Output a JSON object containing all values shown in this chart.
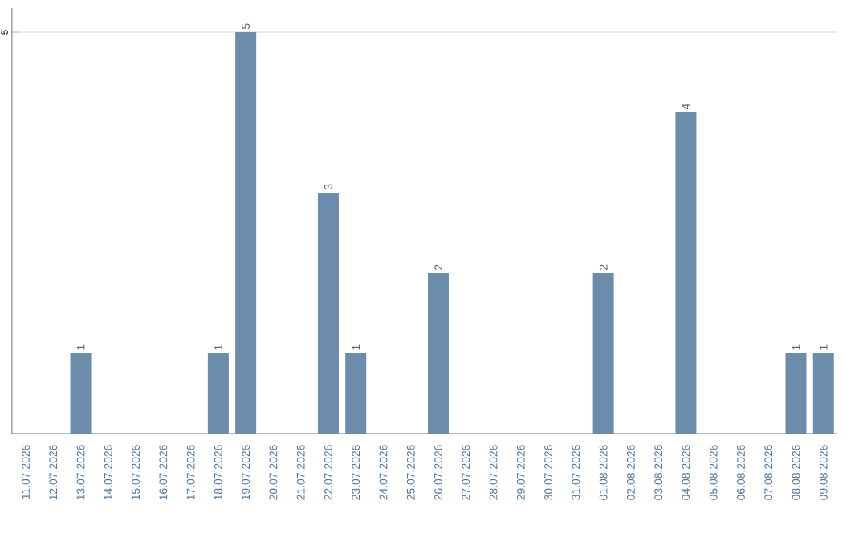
{
  "chart_data": {
    "type": "bar",
    "categories": [
      "11.07.2026",
      "12.07.2026",
      "13.07.2026",
      "14.07.2026",
      "15.07.2026",
      "16.07.2026",
      "17.07.2026",
      "18.07.2026",
      "19.07.2026",
      "20.07.2026",
      "21.07.2026",
      "22.07.2026",
      "23.07.2026",
      "24.07.2026",
      "25.07.2026",
      "26.07.2026",
      "27.07.2026",
      "28.07.2026",
      "29.07.2026",
      "30.07.2026",
      "31.07.2026",
      "01.08.2026",
      "02.08.2026",
      "03.08.2026",
      "04.08.2026",
      "05.08.2026",
      "06.08.2026",
      "07.08.2026",
      "08.08.2026",
      "09.08.2026"
    ],
    "values": [
      0,
      0,
      1,
      0,
      0,
      0,
      0,
      1,
      5,
      0,
      0,
      3,
      1,
      0,
      0,
      2,
      0,
      0,
      0,
      0,
      0,
      2,
      0,
      0,
      4,
      0,
      0,
      0,
      1,
      1
    ],
    "value_labels": [
      null,
      null,
      "1",
      null,
      null,
      null,
      null,
      "1",
      "5",
      null,
      null,
      "3",
      "1",
      null,
      null,
      "2",
      null,
      null,
      null,
      null,
      null,
      "2",
      null,
      null,
      "4",
      null,
      null,
      null,
      "1",
      "1"
    ],
    "color": "#6b8cab",
    "ylim": [
      0,
      5.3
    ],
    "yticks": [
      5
    ],
    "grid": "y"
  }
}
